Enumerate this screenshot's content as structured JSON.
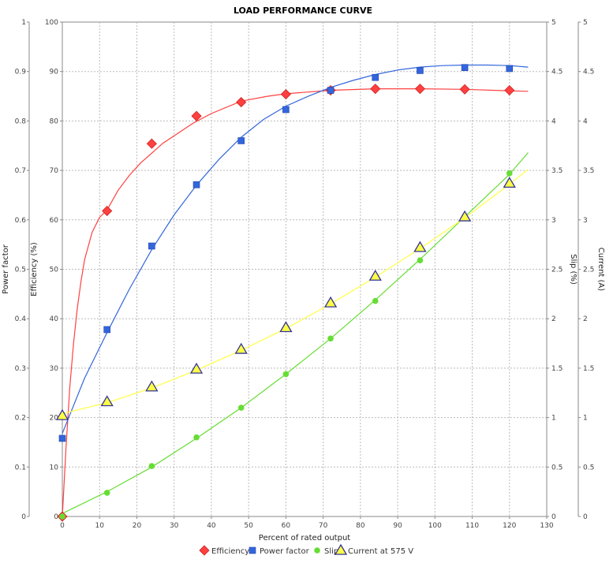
{
  "chart_data": {
    "type": "line",
    "title": "LOAD PERFORMANCE CURVE",
    "xlabel": "Percent of rated output",
    "xlim": [
      0,
      130
    ],
    "x_ticks": [
      "0",
      "10",
      "20",
      "30",
      "40",
      "50",
      "60",
      "70",
      "80",
      "90",
      "100",
      "110",
      "120",
      "130"
    ],
    "grid": true,
    "legend_position": "bottom",
    "axes": {
      "power_factor": {
        "label": "Power factor",
        "side": "left-outer",
        "ylim": [
          0,
          1
        ],
        "ticks": [
          "0",
          "0.1",
          "0.2",
          "0.3",
          "0.4",
          "0.5",
          "0.6",
          "0.7",
          "0.8",
          "0.9",
          "1"
        ]
      },
      "efficiency": {
        "label": "Efficiency (%)",
        "side": "left-inner",
        "ylim": [
          0,
          100
        ],
        "ticks": [
          "0",
          "10",
          "20",
          "30",
          "40",
          "50",
          "60",
          "70",
          "80",
          "90",
          "100"
        ]
      },
      "slip": {
        "label": "Slip (%)",
        "side": "right-inner",
        "ylim": [
          0,
          5
        ],
        "ticks": [
          "0",
          "0.5",
          "1",
          "1.5",
          "2",
          "2.5",
          "3",
          "3.5",
          "4",
          "4.5",
          "5"
        ]
      },
      "current": {
        "label": "Current (A)",
        "side": "right-outer",
        "ylim": [
          0,
          5
        ],
        "ticks": [
          "0",
          "0.5",
          "1",
          "1.5",
          "2",
          "2.5",
          "3",
          "3.5",
          "4",
          "4.5",
          "5"
        ]
      }
    },
    "series": [
      {
        "name": "Efficiency",
        "axis": "efficiency",
        "color": "#ff4040",
        "marker": "diamond",
        "points_x": [
          0,
          12,
          24,
          36,
          48,
          60,
          72,
          84,
          96,
          108,
          120
        ],
        "points_y": [
          0,
          61.8,
          75.4,
          81.0,
          83.8,
          85.4,
          86.2,
          86.5,
          86.5,
          86.4,
          86.2
        ],
        "curve_x": [
          0,
          1,
          2,
          3,
          4,
          5,
          6,
          8,
          10,
          12,
          15,
          18,
          21,
          24,
          27,
          30,
          35,
          40,
          48,
          55,
          60,
          72,
          84,
          96,
          108,
          120,
          125
        ],
        "curve_y": [
          0,
          14,
          26,
          35,
          42,
          47.5,
          52,
          57.5,
          60.5,
          62,
          66,
          69,
          71.5,
          73.5,
          75.5,
          77,
          79.5,
          81.5,
          84,
          85,
          85.5,
          86.2,
          86.5,
          86.5,
          86.4,
          86.1,
          86.0
        ]
      },
      {
        "name": "Power factor",
        "axis": "power_factor",
        "color": "#3366dd",
        "marker": "square",
        "points_x": [
          0,
          12,
          24,
          36,
          48,
          60,
          72,
          84,
          96,
          108,
          120
        ],
        "points_y": [
          0.158,
          0.378,
          0.547,
          0.671,
          0.76,
          0.823,
          0.862,
          0.888,
          0.902,
          0.908,
          0.906
        ],
        "curve_x": [
          0,
          6,
          12,
          18,
          24,
          30,
          36,
          42,
          48,
          54,
          60,
          66,
          72,
          78,
          84,
          90,
          96,
          102,
          108,
          114,
          120,
          125
        ],
        "curve_y": [
          0.168,
          0.28,
          0.372,
          0.46,
          0.54,
          0.61,
          0.67,
          0.722,
          0.767,
          0.803,
          0.83,
          0.85,
          0.868,
          0.882,
          0.894,
          0.903,
          0.909,
          0.912,
          0.913,
          0.913,
          0.912,
          0.909
        ]
      },
      {
        "name": "Slip",
        "axis": "slip",
        "color": "#66dd33",
        "marker": "circle",
        "points_x": [
          0,
          12,
          24,
          36,
          48,
          60,
          72,
          84,
          96,
          108,
          120
        ],
        "points_y": [
          0,
          0.24,
          0.51,
          0.8,
          1.1,
          1.44,
          1.8,
          2.18,
          2.59,
          3.04,
          3.47
        ],
        "curve_x": [
          0,
          12,
          24,
          36,
          48,
          60,
          72,
          84,
          96,
          108,
          120,
          125
        ],
        "curve_y": [
          0.03,
          0.25,
          0.5,
          0.79,
          1.1,
          1.44,
          1.8,
          2.19,
          2.6,
          3.03,
          3.46,
          3.68
        ]
      },
      {
        "name": "Current at 575 V",
        "axis": "current",
        "color": "#ffff44",
        "marker": "triangle",
        "points_x": [
          0,
          12,
          24,
          36,
          48,
          60,
          72,
          84,
          96,
          108,
          120
        ],
        "points_y": [
          1.02,
          1.16,
          1.31,
          1.49,
          1.69,
          1.91,
          2.16,
          2.43,
          2.72,
          3.03,
          3.37
        ],
        "curve_x": [
          0,
          12,
          24,
          36,
          48,
          60,
          72,
          84,
          96,
          108,
          120,
          125
        ],
        "curve_y": [
          1.04,
          1.15,
          1.3,
          1.48,
          1.68,
          1.9,
          2.15,
          2.42,
          2.71,
          3.02,
          3.36,
          3.51
        ]
      }
    ]
  }
}
